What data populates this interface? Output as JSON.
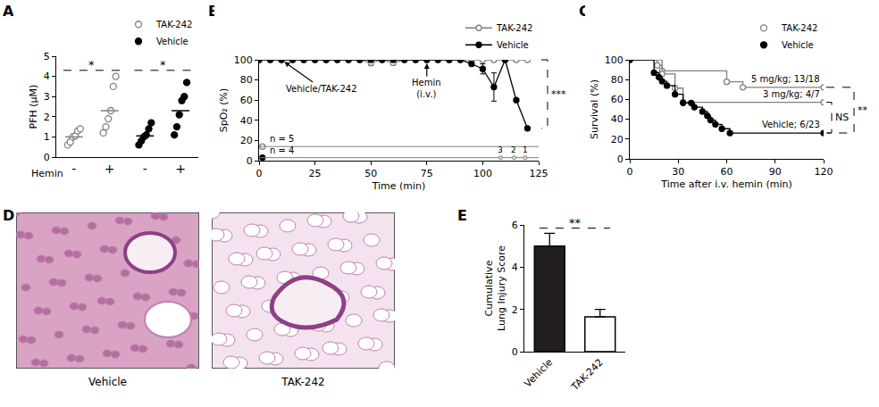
{
  "chart_data": [
    {
      "panel": "A",
      "type": "scatter",
      "y_label": "PFH (μM)",
      "x_label": "Hemin",
      "categories": [
        "-",
        "+",
        "-",
        "+"
      ],
      "ylim": [
        0,
        5
      ],
      "yticks": [
        0,
        1,
        2,
        3,
        4,
        5
      ],
      "legend": "top right",
      "series": [
        {
          "name": "TAK-242",
          "color": "#7f7f7f",
          "marker": "open circle",
          "values": [
            [
              0.6,
              0.75,
              1.0,
              1.05,
              1.3,
              1.4
            ],
            [
              1.2,
              1.5,
              1.9,
              2.3,
              3.5,
              4.0
            ],
            null,
            null
          ],
          "means": [
            1.0,
            2.3,
            null,
            null
          ]
        },
        {
          "name": "Vehicle",
          "color": "#000000",
          "marker": "filled circle",
          "values": [
            null,
            null,
            [
              0.6,
              0.8,
              1.0,
              1.1,
              1.4,
              1.7
            ],
            [
              1.1,
              1.5,
              2.1,
              2.8,
              3.0,
              3.7
            ]
          ],
          "means": [
            null,
            null,
            1.05,
            2.3
          ]
        }
      ],
      "comparisons": [
        {
          "text": "*",
          "from": 0,
          "to": 1,
          "y": 4.3
        },
        {
          "text": "*",
          "from": 2,
          "to": 3,
          "y": 4.3
        }
      ]
    },
    {
      "panel": "B",
      "type": "line",
      "x_label": "Time (min)",
      "y_label": "SpO₂ (%)",
      "xlim": [
        0,
        125
      ],
      "xticks": [
        0,
        25,
        50,
        75,
        100,
        125
      ],
      "ylim": [
        0,
        100
      ],
      "yticks": [
        0,
        20,
        40,
        60,
        80,
        100
      ],
      "legend": "top right",
      "x": [
        0,
        5,
        10,
        15,
        20,
        25,
        30,
        35,
        40,
        45,
        50,
        55,
        60,
        65,
        70,
        75,
        80,
        85,
        90,
        95,
        100,
        105,
        110,
        115,
        120
      ],
      "series": [
        {
          "name": "TAK-242",
          "color": "#7f7f7f",
          "marker": "open circle",
          "values": [
            100,
            100,
            100,
            100,
            100,
            100,
            100,
            100,
            100,
            100,
            97,
            100,
            97,
            100,
            100,
            100,
            100,
            100,
            100,
            100,
            100,
            100,
            100,
            100,
            100
          ],
          "errors": [
            0,
            0,
            0,
            0,
            0,
            0,
            0,
            0,
            0,
            0,
            3,
            0,
            2,
            0,
            0,
            0,
            0,
            0,
            0,
            0,
            0,
            0,
            0,
            0,
            0
          ]
        },
        {
          "name": "Vehicle",
          "color": "#000000",
          "marker": "filled circle",
          "values": [
            100,
            100,
            100,
            100,
            100,
            100,
            100,
            100,
            100,
            100,
            100,
            100,
            100,
            100,
            100,
            100,
            100,
            100,
            100,
            96,
            91,
            73,
            100,
            60,
            32
          ],
          "errors": [
            0,
            0,
            0,
            0,
            0,
            0,
            0,
            0,
            0,
            0,
            0,
            0,
            0,
            0,
            0,
            0,
            0,
            0,
            0,
            2,
            5,
            14,
            0,
            0,
            0
          ]
        }
      ],
      "annotations": [
        {
          "text": "Vehicle/TAK-242",
          "x": 10,
          "y": 100
        },
        {
          "text": "Hemin (i.v.)",
          "x": 75,
          "y": 100
        }
      ],
      "comparisons": [
        {
          "text": "***",
          "y0": 100,
          "y1": 32
        }
      ],
      "timelines": [
        {
          "series": "TAK-242",
          "label": "n = 5",
          "y": 14,
          "x0": 0,
          "x1": 125
        },
        {
          "series": "Vehicle",
          "label": "n = 4",
          "y": 3,
          "x0": 0,
          "x1": 125,
          "marks": [
            {
              "x": 108,
              "label": "3"
            },
            {
              "x": 114,
              "label": "2"
            },
            {
              "x": 119,
              "label": "1"
            }
          ]
        }
      ]
    },
    {
      "panel": "C",
      "type": "line",
      "line_style": "step",
      "x_label": "Time after i.v. hemin (min)",
      "y_label": "Survival (%)",
      "xlim": [
        0,
        120
      ],
      "xticks": [
        0,
        30,
        60,
        90,
        120
      ],
      "ylim": [
        0,
        100
      ],
      "yticks": [
        0,
        20,
        40,
        60,
        80,
        100
      ],
      "legend": "top right",
      "legend_entries": [
        {
          "name": "TAK-242",
          "color": "#7f7f7f",
          "marker": "open circle"
        },
        {
          "name": "Vehicle",
          "color": "#000000",
          "marker": "filled circle"
        }
      ],
      "series": [
        {
          "name": "5 mg/kg; 13/18",
          "color": "#7f7f7f",
          "marker": "open circle",
          "x": [
            0,
            17,
            20,
            60,
            70,
            120
          ],
          "values": [
            100,
            94.4,
            88.9,
            77.8,
            72.2,
            72.2
          ]
        },
        {
          "name": "3 mg/kg; 4/7",
          "color": "#7f7f7f",
          "marker": "open circle",
          "x": [
            0,
            20,
            28,
            33,
            120
          ],
          "values": [
            100,
            85.7,
            71.4,
            57.1,
            57.1
          ]
        },
        {
          "name": "Vehicle; 6/23",
          "color": "#000000",
          "marker": "filled circle",
          "x": [
            0,
            15,
            18,
            20,
            23,
            28,
            33,
            38,
            40,
            45,
            48,
            50,
            53,
            57,
            62,
            120
          ],
          "values": [
            100,
            87.0,
            82.6,
            78.3,
            73.9,
            65.2,
            56.5,
            56.5,
            52.2,
            47.8,
            43.5,
            39.1,
            34.8,
            30.4,
            26.1,
            26.1
          ]
        }
      ],
      "comparisons": [
        {
          "text": "NS",
          "y0": 57.1,
          "y1": 26.1
        },
        {
          "text": "**",
          "y0": 72.2,
          "y1": 26.1
        }
      ]
    },
    {
      "panel": "D",
      "type": "image",
      "images": [
        "Vehicle",
        "TAK-242"
      ]
    },
    {
      "panel": "E",
      "type": "bar",
      "y_label": "Cumulative Lung Injury Score",
      "categories": [
        "Vehicle",
        "TAK-242"
      ],
      "values": [
        5.0,
        1.65
      ],
      "errors": [
        0.6,
        0.35
      ],
      "colors": [
        "#231f20",
        "#ffffff"
      ],
      "ylim": [
        0,
        6
      ],
      "yticks": [
        0,
        2,
        4,
        6
      ],
      "comparisons": [
        {
          "text": "**",
          "from": 0,
          "to": 1,
          "y": 5.85
        }
      ]
    }
  ]
}
